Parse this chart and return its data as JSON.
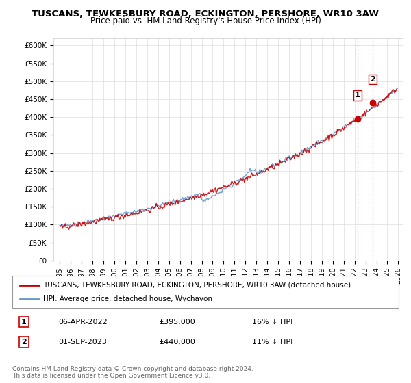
{
  "title": "TUSCANS, TEWKESBURY ROAD, ECKINGTON, PERSHORE, WR10 3AW",
  "subtitle": "Price paid vs. HM Land Registry's House Price Index (HPI)",
  "ylabel_ticks": [
    "£0",
    "£50K",
    "£100K",
    "£150K",
    "£200K",
    "£250K",
    "£300K",
    "£350K",
    "£400K",
    "£450K",
    "£500K",
    "£550K",
    "£600K"
  ],
  "ylim": [
    0,
    620000
  ],
  "ytick_values": [
    0,
    50000,
    100000,
    150000,
    200000,
    250000,
    300000,
    350000,
    400000,
    450000,
    500000,
    550000,
    600000
  ],
  "legend_line1": "TUSCANS, TEWKESBURY ROAD, ECKINGTON, PERSHORE, WR10 3AW (detached house)",
  "legend_line2": "HPI: Average price, detached house, Wychavon",
  "transaction1_label": "1",
  "transaction1_date": "06-APR-2022",
  "transaction1_price": "£395,000",
  "transaction1_hpi": "16% ↓ HPI",
  "transaction2_label": "2",
  "transaction2_date": "01-SEP-2023",
  "transaction2_price": "£440,000",
  "transaction2_hpi": "11% ↓ HPI",
  "footnote": "Contains HM Land Registry data © Crown copyright and database right 2024.\nThis data is licensed under the Open Government Licence v3.0.",
  "red_color": "#cc0000",
  "blue_color": "#6699cc",
  "grid_color": "#dddddd",
  "background_color": "#ffffff"
}
